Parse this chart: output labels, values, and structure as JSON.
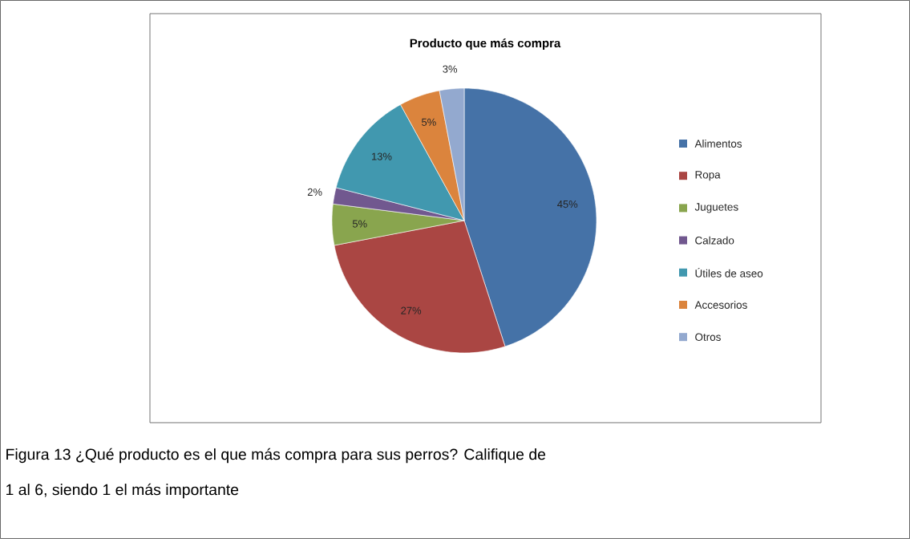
{
  "chart_data": {
    "type": "pie",
    "title": "Producto que más compra",
    "categories": [
      "Alimentos",
      "Ropa",
      "Juguetes",
      "Calzado",
      "Útiles de aseo",
      "Accesorios",
      "Otros"
    ],
    "values": [
      45,
      27,
      5,
      2,
      13,
      5,
      3
    ],
    "colors": [
      "#4572a7",
      "#aa4643",
      "#89a54e",
      "#71588f",
      "#4198af",
      "#db843d",
      "#93a9cf"
    ],
    "value_labels": [
      "45%",
      "27%",
      "5%",
      "2%",
      "13%",
      "5%",
      "3%"
    ],
    "legend": "right",
    "annotations": [
      "Figura 13 ¿Qué producto es el que más compra para sus perros? Califique de",
      "1 al 6,     siendo 1 el más importante"
    ]
  }
}
